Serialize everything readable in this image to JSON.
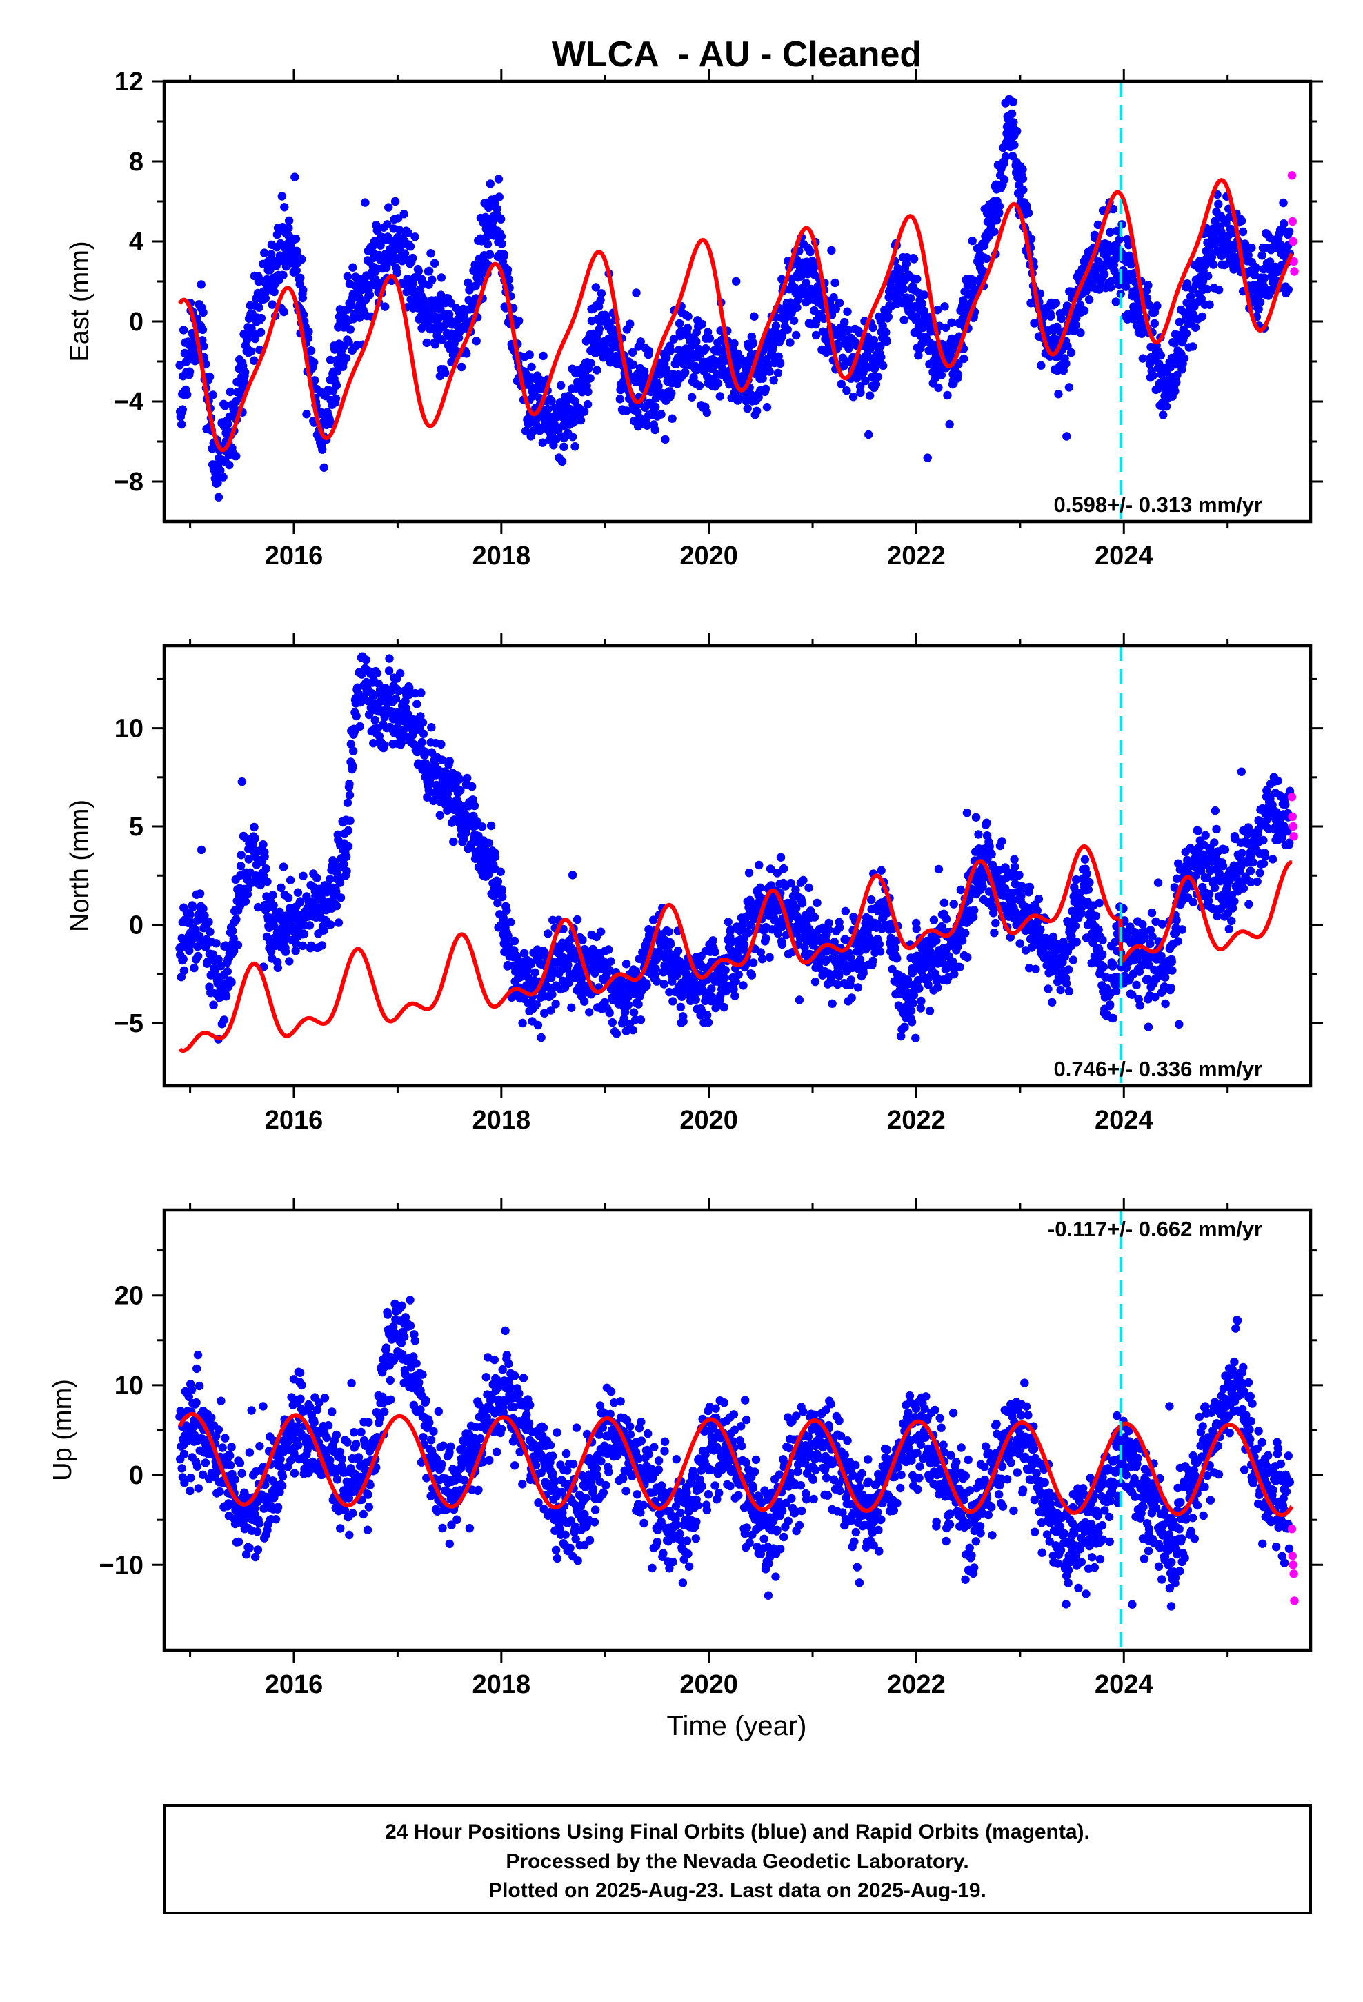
{
  "title": "WLCA  - AU - Cleaned",
  "xlabel": "Time (year)",
  "footer": [
    "24 Hour Positions Using Final Orbits (blue) and Rapid Orbits (magenta).",
    "Processed by the Nevada Geodetic Laboratory.",
    "Plotted on 2025-Aug-23. Last data on 2025-Aug-19."
  ],
  "colors": {
    "final": "#0000ff",
    "rapid": "#ff00ff",
    "model": "#ff0000",
    "event": "#00e5ee",
    "frame": "#000000"
  },
  "chart_data": [
    {
      "type": "scatter",
      "panel": "east",
      "ylabel": "East (mm)",
      "rate": "0.598+/- 0.313 mm/yr",
      "xlim": [
        2014.75,
        2025.8
      ],
      "ylim": [
        -10,
        12
      ],
      "xticks": [
        2016,
        2018,
        2020,
        2022,
        2024
      ],
      "yticks": [
        -8,
        -4,
        0,
        4,
        8,
        12
      ],
      "event_line": 2023.97,
      "data_span": [
        2014.9,
        2025.6
      ],
      "final_anchors": [
        [
          2014.9,
          -4
        ],
        [
          2015.0,
          -1
        ],
        [
          2015.1,
          0
        ],
        [
          2015.25,
          -7.5
        ],
        [
          2015.4,
          -5
        ],
        [
          2015.55,
          -1
        ],
        [
          2015.7,
          1.5
        ],
        [
          2015.9,
          3.5
        ],
        [
          2016.0,
          3
        ],
        [
          2016.15,
          -2
        ],
        [
          2016.25,
          -5.5
        ],
        [
          2016.35,
          -4
        ],
        [
          2016.5,
          0
        ],
        [
          2016.7,
          2
        ],
        [
          2016.9,
          4
        ],
        [
          2017.05,
          3.8
        ],
        [
          2017.2,
          1
        ],
        [
          2017.5,
          -0.5
        ],
        [
          2017.7,
          0
        ],
        [
          2017.85,
          4
        ],
        [
          2017.95,
          5.5
        ],
        [
          2018.05,
          2
        ],
        [
          2018.2,
          -3
        ],
        [
          2018.5,
          -5
        ],
        [
          2018.7,
          -4.5
        ],
        [
          2018.9,
          -0.5
        ],
        [
          2019.05,
          -0.5
        ],
        [
          2019.2,
          -3
        ],
        [
          2019.5,
          -3.5
        ],
        [
          2019.8,
          -1.5
        ],
        [
          2020.0,
          -2
        ],
        [
          2020.3,
          -2.5
        ],
        [
          2020.6,
          -2
        ],
        [
          2020.9,
          3
        ],
        [
          2021.1,
          0.5
        ],
        [
          2021.35,
          -1.5
        ],
        [
          2021.6,
          -2
        ],
        [
          2021.8,
          2
        ],
        [
          2021.95,
          1.5
        ],
        [
          2022.15,
          -1.5
        ],
        [
          2022.35,
          -2
        ],
        [
          2022.6,
          2.5
        ],
        [
          2022.8,
          6.5
        ],
        [
          2022.9,
          10
        ],
        [
          2023.05,
          5
        ],
        [
          2023.2,
          0
        ],
        [
          2023.4,
          -1.5
        ],
        [
          2023.6,
          1.5
        ],
        [
          2023.8,
          3.5
        ],
        [
          2024.0,
          3
        ],
        [
          2024.2,
          0
        ],
        [
          2024.4,
          -3.5
        ],
        [
          2024.6,
          0
        ],
        [
          2024.9,
          4.5
        ],
        [
          2025.15,
          3.5
        ],
        [
          2025.3,
          1.5
        ],
        [
          2025.45,
          3
        ],
        [
          2025.6,
          3.5
        ]
      ],
      "rapid_values": [
        7.3,
        5,
        4,
        3,
        2.5
      ],
      "model": {
        "offset": 0.2,
        "slope": 0.598,
        "ref": 2020,
        "annual_amp": 3.5,
        "annual_peak": 2016.88,
        "semi_amp": 0.9,
        "semi_phase": 2016.0
      }
    },
    {
      "type": "scatter",
      "panel": "north",
      "ylabel": "North (mm)",
      "rate": "0.746+/- 0.336 mm/yr",
      "xlim": [
        2014.75,
        2025.8
      ],
      "ylim": [
        -8.2,
        14.2
      ],
      "xticks": [
        2016,
        2018,
        2020,
        2022,
        2024
      ],
      "yticks": [
        -5,
        0,
        5,
        10
      ],
      "event_line": 2023.97,
      "data_span": [
        2014.9,
        2025.6
      ],
      "final_anchors": [
        [
          2014.9,
          -1
        ],
        [
          2015.1,
          0.5
        ],
        [
          2015.3,
          -4
        ],
        [
          2015.5,
          2
        ],
        [
          2015.6,
          4
        ],
        [
          2015.8,
          0
        ],
        [
          2016.1,
          0.5
        ],
        [
          2016.3,
          1
        ],
        [
          2016.5,
          4
        ],
        [
          2016.6,
          11
        ],
        [
          2016.7,
          12.5
        ],
        [
          2016.85,
          11
        ],
        [
          2017.1,
          11
        ],
        [
          2017.3,
          8
        ],
        [
          2017.6,
          6
        ],
        [
          2017.9,
          3
        ],
        [
          2018.1,
          -2
        ],
        [
          2018.3,
          -3.5
        ],
        [
          2018.6,
          -1.5
        ],
        [
          2018.9,
          -2.5
        ],
        [
          2019.2,
          -4
        ],
        [
          2019.5,
          -1
        ],
        [
          2019.7,
          -3
        ],
        [
          2020.0,
          -3
        ],
        [
          2020.3,
          -1
        ],
        [
          2020.6,
          1
        ],
        [
          2020.9,
          0
        ],
        [
          2021.2,
          -2
        ],
        [
          2021.5,
          -1
        ],
        [
          2021.7,
          1
        ],
        [
          2021.85,
          -4
        ],
        [
          2022.1,
          -1.5
        ],
        [
          2022.4,
          -1
        ],
        [
          2022.6,
          3
        ],
        [
          2022.8,
          2
        ],
        [
          2023.0,
          1
        ],
        [
          2023.2,
          -1
        ],
        [
          2023.4,
          -2
        ],
        [
          2023.6,
          2
        ],
        [
          2023.85,
          -3.5
        ],
        [
          2023.97,
          -1
        ],
        [
          2024.2,
          -1.5
        ],
        [
          2024.4,
          -2.5
        ],
        [
          2024.6,
          3
        ],
        [
          2024.8,
          3
        ],
        [
          2025.0,
          2
        ],
        [
          2025.2,
          3
        ],
        [
          2025.4,
          6
        ],
        [
          2025.6,
          5.5
        ]
      ],
      "rapid_values": [
        6.5,
        5.5,
        5,
        4.5
      ],
      "model": {
        "offset": -1.2,
        "slope": 0.746,
        "ref": 2020,
        "annual_amp": 1.6,
        "annual_peak": 2016.6,
        "semi_amp": 0.9,
        "semi_phase": 2016.62,
        "step_at": 2023.97,
        "step": -2.3
      }
    },
    {
      "type": "scatter",
      "panel": "up",
      "ylabel": "Up (mm)",
      "rate": "-0.117+/- 0.662 mm/yr",
      "xlim": [
        2014.75,
        2025.8
      ],
      "ylim": [
        -19.5,
        29.5
      ],
      "xticks": [
        2016,
        2018,
        2020,
        2022,
        2024
      ],
      "yticks": [
        -10,
        0,
        10,
        20
      ],
      "event_line": 2023.97,
      "data_span": [
        2014.9,
        2025.6
      ],
      "final_anchors": [
        [
          2014.9,
          3
        ],
        [
          2015.05,
          6
        ],
        [
          2015.25,
          2
        ],
        [
          2015.5,
          -5
        ],
        [
          2015.75,
          -3
        ],
        [
          2016.0,
          6
        ],
        [
          2016.2,
          5
        ],
        [
          2016.5,
          -2
        ],
        [
          2016.75,
          0
        ],
        [
          2016.9,
          14
        ],
        [
          2017.0,
          17
        ],
        [
          2017.15,
          12
        ],
        [
          2017.35,
          0
        ],
        [
          2017.55,
          -2
        ],
        [
          2017.85,
          6
        ],
        [
          2018.05,
          9
        ],
        [
          2018.25,
          5
        ],
        [
          2018.5,
          -2
        ],
        [
          2018.75,
          -4
        ],
        [
          2019.05,
          5
        ],
        [
          2019.3,
          1
        ],
        [
          2019.6,
          -6
        ],
        [
          2019.85,
          -3
        ],
        [
          2020.05,
          5
        ],
        [
          2020.3,
          0
        ],
        [
          2020.55,
          -7
        ],
        [
          2020.8,
          0
        ],
        [
          2021.05,
          5
        ],
        [
          2021.3,
          0
        ],
        [
          2021.55,
          -5
        ],
        [
          2021.8,
          1
        ],
        [
          2022.05,
          6
        ],
        [
          2022.3,
          -2
        ],
        [
          2022.55,
          -5
        ],
        [
          2022.8,
          1
        ],
        [
          2023.0,
          5
        ],
        [
          2023.25,
          -3
        ],
        [
          2023.5,
          -8
        ],
        [
          2023.75,
          -4
        ],
        [
          2024.0,
          3
        ],
        [
          2024.2,
          -2
        ],
        [
          2024.45,
          -9
        ],
        [
          2024.7,
          0
        ],
        [
          2024.95,
          7
        ],
        [
          2025.1,
          10
        ],
        [
          2025.3,
          0
        ],
        [
          2025.5,
          -3
        ],
        [
          2025.6,
          -2
        ]
      ],
      "rapid_values": [
        -6,
        -9,
        -10,
        -11,
        -14
      ],
      "model": {
        "offset": 1.2,
        "slope": -0.117,
        "ref": 2020,
        "annual_amp": 5.0,
        "annual_peak": 2016.02,
        "semi_amp": 0.0,
        "semi_phase": 2016.0
      }
    }
  ]
}
